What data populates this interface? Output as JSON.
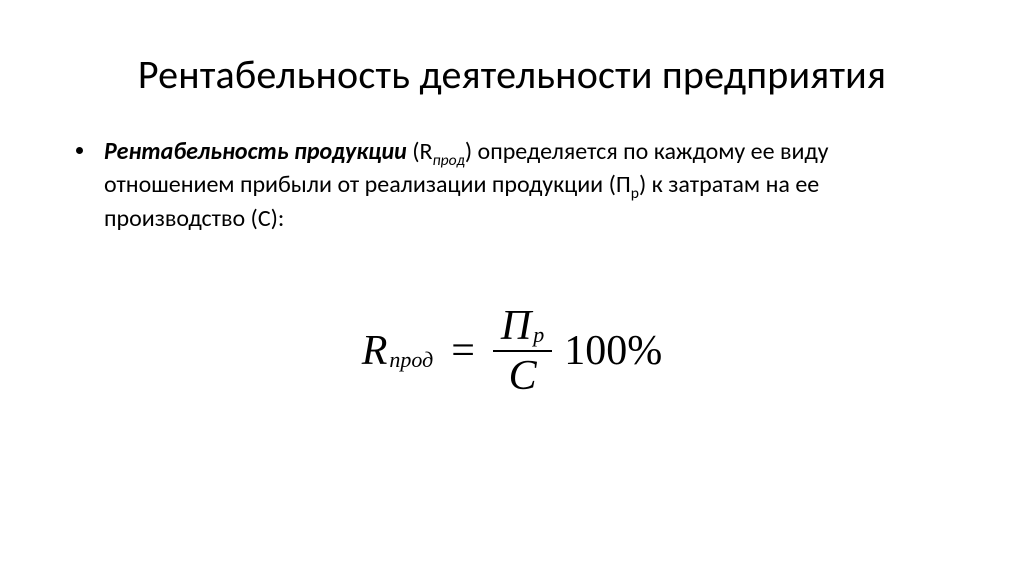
{
  "slide": {
    "title": "Рентабельность деятельности предприятия",
    "bullet": {
      "term": "Рентабельность продукции",
      "sym_open": " (R",
      "sym_sub": "прод",
      "sym_close": ") ",
      "rest1": "определяется   по каждому ее виду  отношением   прибыли  от реализации продукции (П",
      "rest1_sub": "р",
      "rest2": ") к затратам на ее производство (С):"
    },
    "formula": {
      "lhs_R": "R",
      "lhs_sub": "прод",
      "eq": "=",
      "num_main": "П",
      "num_sub": "p",
      "den": "C",
      "tail": "100%"
    }
  },
  "style": {
    "background": "#ffffff",
    "text_color": "#000000",
    "title_fontsize": 40,
    "body_fontsize": 24,
    "formula_fontsize": 42
  }
}
